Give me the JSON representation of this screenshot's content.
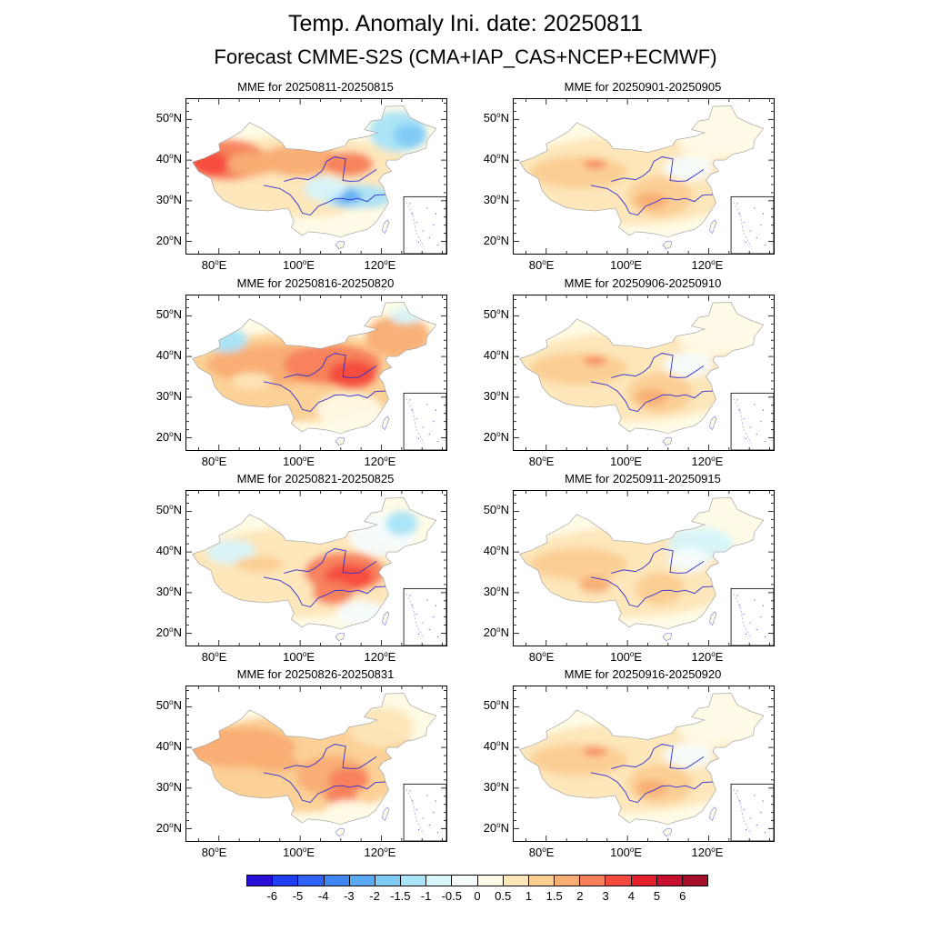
{
  "title": "Temp. Anomaly Ini. date: 20250811",
  "subtitle": "Forecast CMME-S2S (CMA+IAP_CAS+NCEP+ECMWF)",
  "lon_ticks": [
    "80",
    "100",
    "120"
  ],
  "lon_suffix": "E",
  "lat_ticks": [
    "50",
    "40",
    "30",
    "20"
  ],
  "lat_suffix": "N",
  "panels": [
    {
      "title": "MME for 20250811-20250815",
      "pattern": "west-hot-ne-cold"
    },
    {
      "title": "MME for 20250901-20250905",
      "pattern": "mild-warm"
    },
    {
      "title": "MME for 20250816-20250820",
      "pattern": "north-hot"
    },
    {
      "title": "MME for 20250906-20250910",
      "pattern": "mild-warm"
    },
    {
      "title": "MME for 20250821-20250825",
      "pattern": "central-hot"
    },
    {
      "title": "MME for 20250911-20250915",
      "pattern": "mild-warm-ne-cool"
    },
    {
      "title": "MME for 20250826-20250831",
      "pattern": "broad-warm"
    },
    {
      "title": "MME for 20250916-20250920",
      "pattern": "mild-warm"
    }
  ],
  "colorbar": {
    "labels": [
      "-6",
      "-5",
      "-4",
      "-3",
      "-2",
      "-1.5",
      "-1",
      "-0.5",
      "0",
      "0.5",
      "1",
      "1.5",
      "2",
      "3",
      "4",
      "5",
      "6"
    ],
    "colors": [
      "#2a0fd8",
      "#1f3ff0",
      "#2f62f5",
      "#3f86f0",
      "#5aaaf3",
      "#7fcbf5",
      "#a8e4f8",
      "#d6f6fb",
      "#f6fdfd",
      "#fffbe6",
      "#fde6b8",
      "#fbcf92",
      "#f8ad73",
      "#f7805a",
      "#f44a3e",
      "#e6202a",
      "#c8102e",
      "#a50f2a"
    ]
  }
}
